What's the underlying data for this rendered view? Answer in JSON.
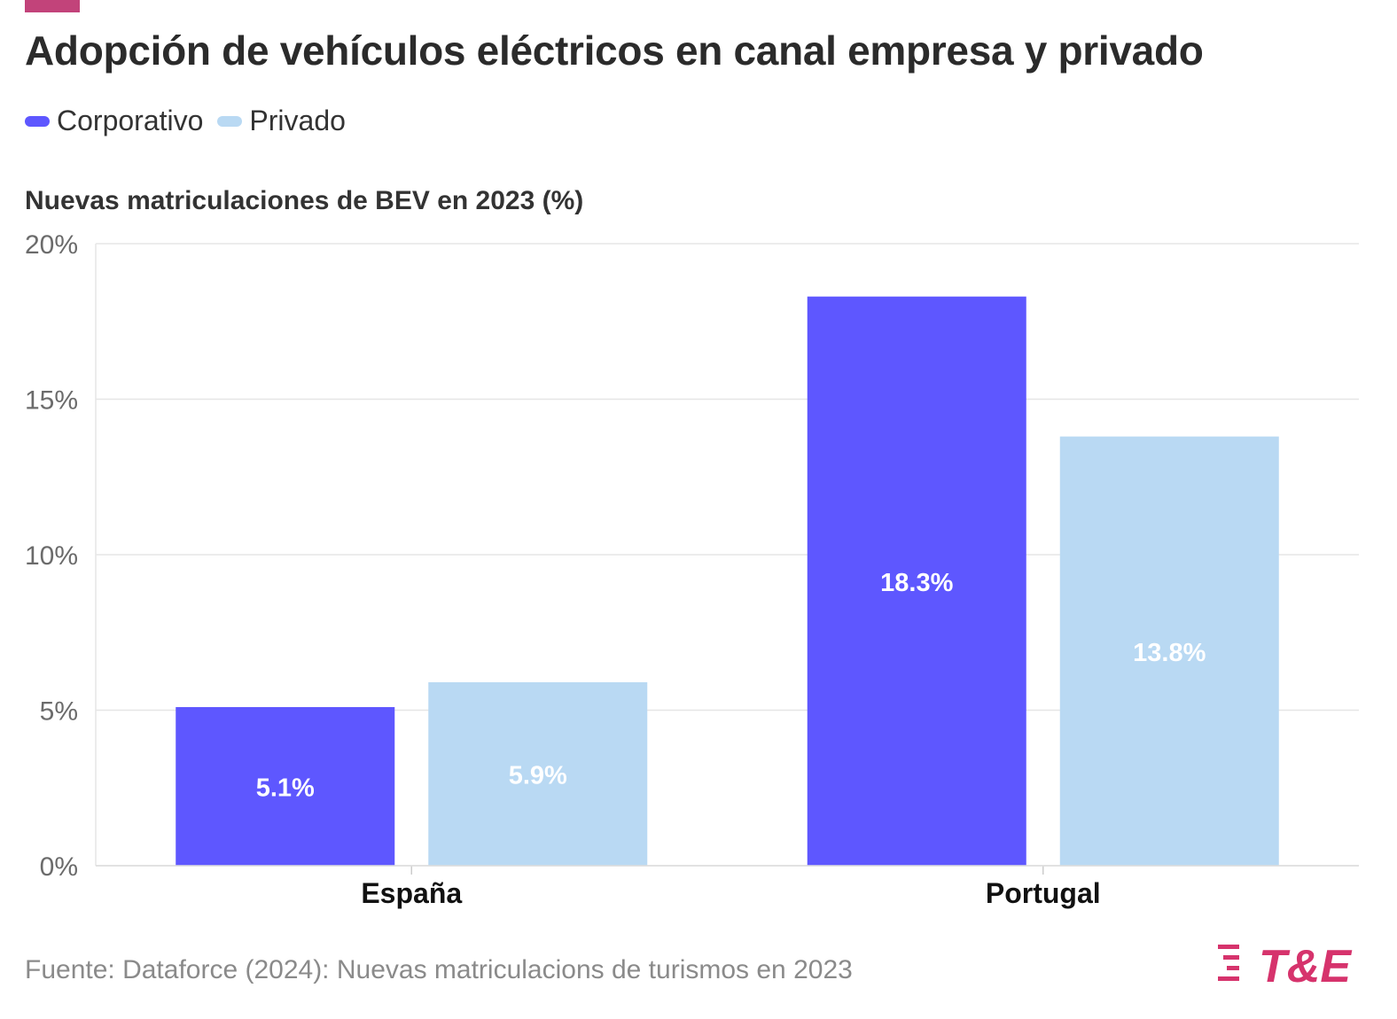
{
  "title": "Adopción de vehículos eléctricos en canal empresa y privado",
  "subtitle": "Nuevas matriculaciones de BEV en 2023 (%)",
  "source": "Fuente: Dataforce (2024): Nuevas matriculacions de turismos en 2023",
  "logo_text": "T&E",
  "colors": {
    "accent": "#c2437a",
    "corporativo": "#5e57ff",
    "privado": "#b9d9f3",
    "logo": "#d6336c"
  },
  "chart_data": {
    "type": "bar",
    "categories": [
      "España",
      "Portugal"
    ],
    "series": [
      {
        "name": "Corporativo",
        "values": [
          5.1,
          18.3
        ],
        "labels": [
          "5.1%",
          "18.3%"
        ],
        "color": "#5e57ff"
      },
      {
        "name": "Privado",
        "values": [
          5.9,
          13.8
        ],
        "labels": [
          "5.9%",
          "13.8%"
        ],
        "color": "#b9d9f3"
      }
    ],
    "ylim": [
      0,
      20
    ],
    "yticks": [
      0,
      5,
      10,
      15,
      20
    ],
    "ytick_labels": [
      "0%",
      "5%",
      "10%",
      "15%",
      "20%"
    ],
    "grid": true,
    "legend_position": "top-left"
  }
}
